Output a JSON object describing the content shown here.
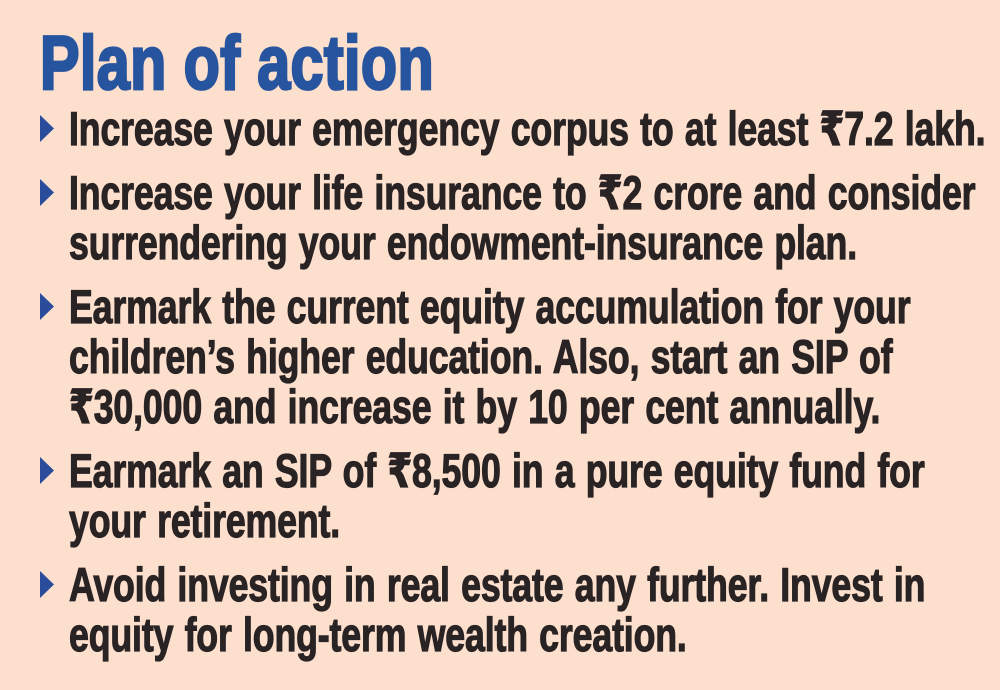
{
  "title": "Plan of action",
  "bullet_icon": "triangle-right",
  "colors": {
    "background": "#fcdfcd",
    "title": "#27549e",
    "bullet": "#2b4b9b",
    "text": "#292324"
  },
  "items": [
    {
      "lines": [
        "Increase your emergency corpus to at least ₹7.2 lakh."
      ]
    },
    {
      "lines": [
        "Increase your life insurance to ₹2 crore and consider",
        "surrendering your endowment-insurance plan."
      ]
    },
    {
      "lines": [
        "Earmark the current equity accumulation for your",
        "children’s higher education. Also, start an SIP of",
        "₹30,000 and increase it by 10 per cent annually."
      ]
    },
    {
      "lines": [
        "Earmark an SIP of ₹8,500 in a pure equity fund for",
        "your retirement."
      ]
    },
    {
      "lines": [
        "Avoid investing in real estate any further. Invest in",
        "equity for long-term wealth creation."
      ]
    }
  ]
}
